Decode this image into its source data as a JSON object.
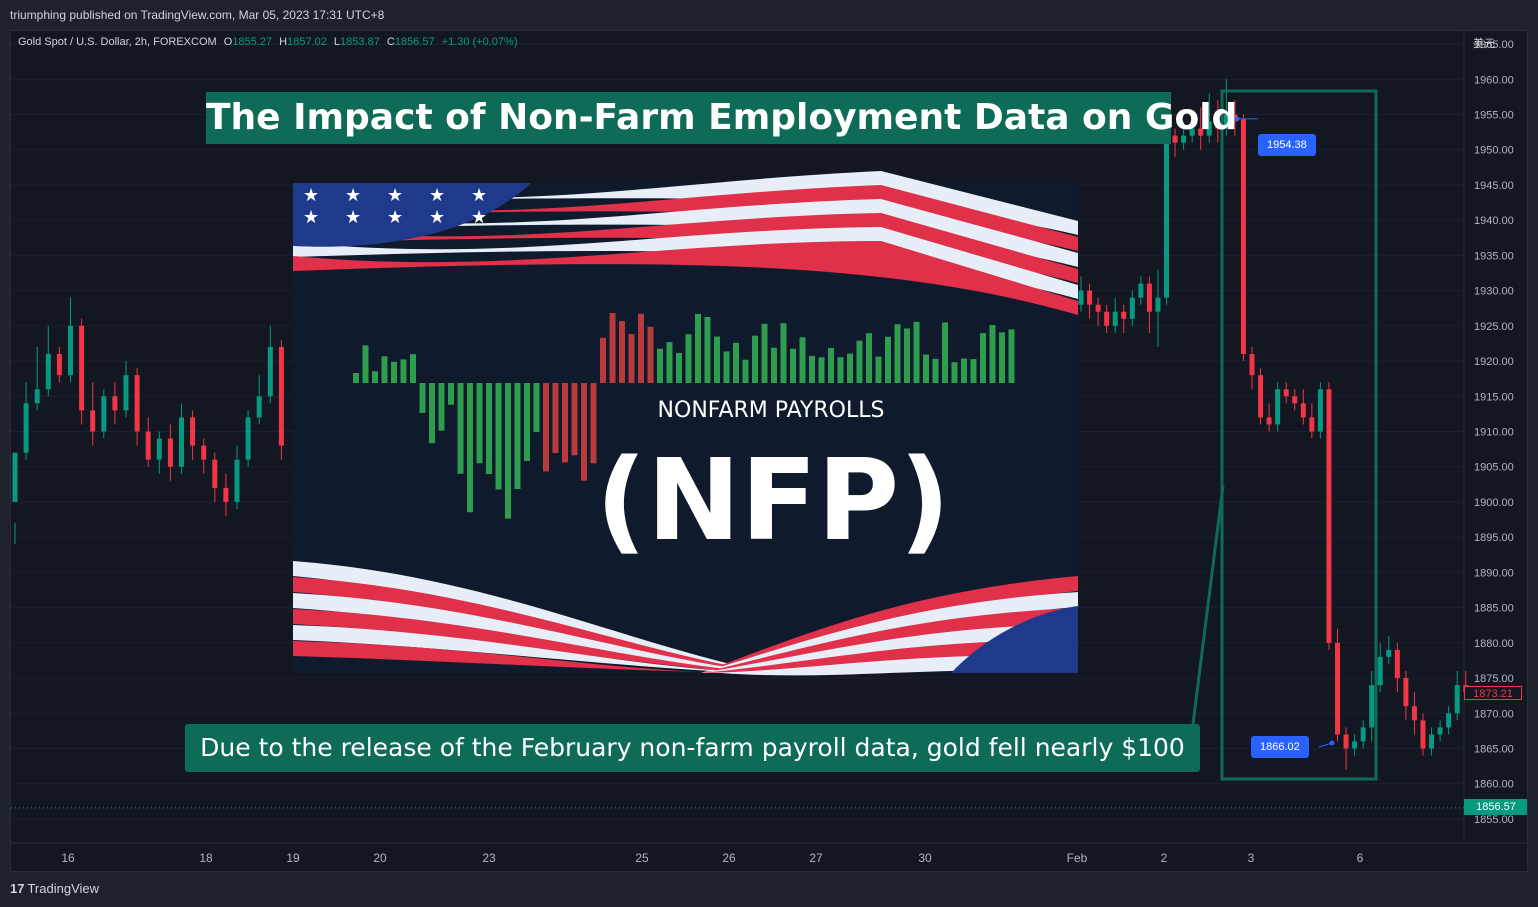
{
  "header": {
    "published": "triumphing published on TradingView.com, Mar 05, 2023 17:31 UTC+8"
  },
  "legend": {
    "symbol": "Gold Spot / U.S. Dollar, 2h, FOREXCOM",
    "o_label": "O",
    "o": "1855.27",
    "h_label": "H",
    "h": "1857.02",
    "l_label": "L",
    "l": "1853.87",
    "c_label": "C",
    "c": "1856.57",
    "change": "+1.30 (+0.07%)"
  },
  "currency": "美元",
  "title": "The Impact of Non-Farm Employment Data on Gold",
  "caption": "Due to the release of the February non-farm payroll data, gold fell nearly $100",
  "nfp": {
    "heading": "NONFARM PAYROLLS",
    "acronym": "(NFP)"
  },
  "markers": {
    "high": "1954.38",
    "low": "1866.02"
  },
  "price_labels": {
    "last": "1873.21",
    "current": "1856.57"
  },
  "footer": {
    "brand": "TradingView",
    "brand_mark": "17"
  },
  "colors": {
    "up": "#089981",
    "down": "#f23645",
    "annotation": "#0e6b57",
    "marker": "#2962ff",
    "background": "#131722"
  },
  "chart_data": {
    "type": "candlestick",
    "title": "The Impact of Non-Farm Employment Data on Gold",
    "symbol": "Gold Spot / U.S. Dollar, 2h, FOREXCOM",
    "y_ticks": [
      "1855.00",
      "1860.00",
      "1865.00",
      "1870.00",
      "1875.00",
      "1880.00",
      "1885.00",
      "1890.00",
      "1895.00",
      "1900.00",
      "1905.00",
      "1910.00",
      "1915.00",
      "1920.00",
      "1925.00",
      "1930.00",
      "1935.00",
      "1940.00",
      "1945.00",
      "1950.00",
      "1955.00",
      "1960.00",
      "1965.00"
    ],
    "ylim": [
      1854,
      1966
    ],
    "x_ticks": [
      "16",
      "18",
      "19",
      "20",
      "23",
      "25",
      "26",
      "27",
      "30",
      "Feb",
      "2",
      "3",
      "6"
    ],
    "highlight_high": 1954.38,
    "highlight_low": 1866.02,
    "current_price": 1856.57,
    "candles": [
      [
        1900,
        1907,
        1897,
        1894
      ],
      [
        1907,
        1914,
        1917,
        1906
      ],
      [
        1914,
        1916,
        1922,
        1913
      ],
      [
        1916,
        1921,
        1925,
        1915
      ],
      [
        1921,
        1918,
        1922,
        1917
      ],
      [
        1918,
        1925,
        1929,
        1917
      ],
      [
        1925,
        1913,
        1926,
        1911
      ],
      [
        1913,
        1910,
        1917,
        1908
      ],
      [
        1910,
        1915,
        1916,
        1909
      ],
      [
        1915,
        1913,
        1917,
        1911
      ],
      [
        1913,
        1918,
        1920,
        1912
      ],
      [
        1918,
        1910,
        1919,
        1908
      ],
      [
        1910,
        1906,
        1912,
        1905
      ],
      [
        1906,
        1909,
        1910,
        1904
      ],
      [
        1909,
        1905,
        1911,
        1903
      ],
      [
        1905,
        1912,
        1914,
        1904
      ],
      [
        1912,
        1908,
        1913,
        1906
      ],
      [
        1908,
        1906,
        1909,
        1904
      ],
      [
        1906,
        1902,
        1907,
        1900
      ],
      [
        1902,
        1900,
        1904,
        1898
      ],
      [
        1900,
        1906,
        1908,
        1899
      ],
      [
        1906,
        1912,
        1913,
        1905
      ],
      [
        1912,
        1915,
        1918,
        1911
      ],
      [
        1915,
        1922,
        1925,
        1914
      ],
      [
        1922,
        1908,
        1923,
        1906
      ],
      [
        1928,
        1930,
        1932,
        1927
      ],
      [
        1930,
        1928,
        1931,
        1926
      ],
      [
        1928,
        1927,
        1929,
        1925
      ],
      [
        1927,
        1925,
        1928,
        1924
      ],
      [
        1925,
        1927,
        1929,
        1924
      ],
      [
        1927,
        1926,
        1928,
        1924
      ],
      [
        1926,
        1929,
        1930,
        1925
      ],
      [
        1929,
        1931,
        1932,
        1928
      ],
      [
        1931,
        1927,
        1932,
        1924
      ],
      [
        1927,
        1929,
        1933,
        1922
      ],
      [
        1929,
        1952,
        1954,
        1928
      ],
      [
        1952,
        1951,
        1953,
        1949
      ],
      [
        1951,
        1952,
        1954,
        1950
      ],
      [
        1952,
        1953,
        1955,
        1951
      ],
      [
        1953,
        1952,
        1956,
        1950
      ],
      [
        1952,
        1954,
        1958,
        1951
      ],
      [
        1954,
        1953,
        1957,
        1951
      ],
      [
        1953,
        1955,
        1960,
        1952
      ],
      [
        1955,
        1954,
        1957,
        1952
      ],
      [
        1954.38,
        1921,
        1955,
        1920
      ],
      [
        1921,
        1918,
        1922,
        1916
      ],
      [
        1918,
        1912,
        1919,
        1911
      ],
      [
        1912,
        1911,
        1914,
        1910
      ],
      [
        1911,
        1916,
        1917,
        1910
      ],
      [
        1916,
        1915,
        1917,
        1914
      ],
      [
        1915,
        1914,
        1916,
        1913
      ],
      [
        1914,
        1912,
        1916,
        1911
      ],
      [
        1912,
        1910,
        1914,
        1909
      ],
      [
        1910,
        1916,
        1917,
        1909
      ],
      [
        1916,
        1880,
        1917,
        1879
      ],
      [
        1880,
        1867,
        1882,
        1866
      ],
      [
        1867,
        1865,
        1868,
        1862
      ],
      [
        1865,
        1866,
        1867,
        1864
      ],
      [
        1866,
        1868,
        1869,
        1865
      ],
      [
        1868,
        1874,
        1876,
        1866
      ],
      [
        1874,
        1878,
        1880,
        1873
      ],
      [
        1878,
        1879,
        1881,
        1877
      ],
      [
        1879,
        1875,
        1880,
        1873
      ],
      [
        1875,
        1871,
        1876,
        1869
      ],
      [
        1871,
        1869,
        1873,
        1867
      ],
      [
        1869,
        1865,
        1870,
        1864
      ],
      [
        1865,
        1867,
        1868,
        1864
      ],
      [
        1867,
        1868,
        1869,
        1866
      ],
      [
        1868,
        1870,
        1871,
        1867
      ],
      [
        1870,
        1874,
        1876,
        1869
      ],
      [
        1874,
        1873,
        1876,
        1872
      ]
    ]
  }
}
